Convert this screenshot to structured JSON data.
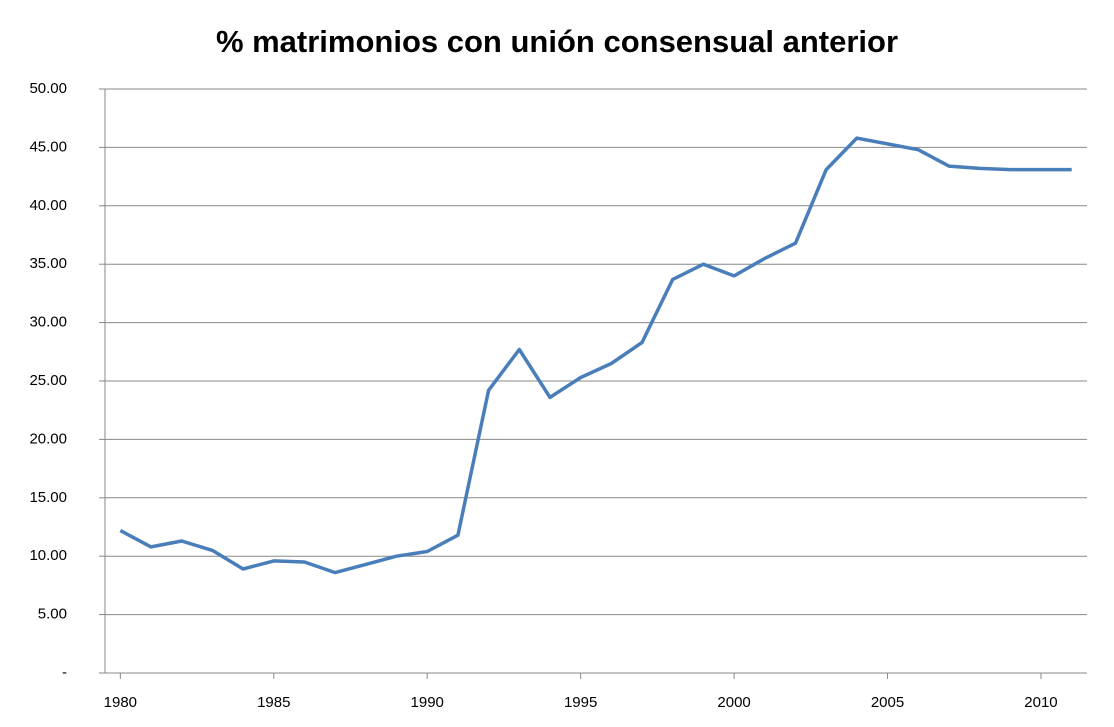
{
  "chart_data": {
    "type": "line",
    "title": "% matrimonios  con unión consensual anterior",
    "x": [
      1980,
      1981,
      1982,
      1983,
      1984,
      1985,
      1986,
      1987,
      1988,
      1989,
      1990,
      1991,
      1992,
      1993,
      1994,
      1995,
      1996,
      1997,
      1998,
      1999,
      2000,
      2001,
      2002,
      2003,
      2004,
      2005,
      2006,
      2007,
      2008,
      2009,
      2010,
      2011
    ],
    "series": [
      {
        "color": "#4a7ebb",
        "values": [
          12.2,
          10.8,
          11.3,
          10.5,
          8.9,
          9.6,
          9.5,
          8.6,
          9.3,
          10.0,
          10.4,
          11.8,
          24.2,
          27.7,
          23.6,
          25.3,
          26.5,
          28.3,
          33.7,
          35.0,
          34.0,
          35.5,
          36.8,
          43.1,
          45.8,
          45.3,
          44.8,
          43.4,
          43.2,
          43.1,
          43.1,
          43.1
        ]
      }
    ],
    "xlim": [
      1979.5,
      2011.5
    ],
    "xticks": [
      1980,
      1985,
      1990,
      1995,
      2000,
      2005,
      2010
    ],
    "ylim": [
      0,
      50
    ],
    "yticks": [
      {
        "value": 0,
        "label": "-"
      },
      {
        "value": 5,
        "label": "5.00"
      },
      {
        "value": 10,
        "label": "10.00"
      },
      {
        "value": 15,
        "label": "15.00"
      },
      {
        "value": 20,
        "label": "20.00"
      },
      {
        "value": 25,
        "label": "25.00"
      },
      {
        "value": 30,
        "label": "30.00"
      },
      {
        "value": 35,
        "label": "35.00"
      },
      {
        "value": 40,
        "label": "40.00"
      },
      {
        "value": 45,
        "label": "45.00"
      },
      {
        "value": 50,
        "label": "50.00"
      }
    ],
    "grid": true
  }
}
